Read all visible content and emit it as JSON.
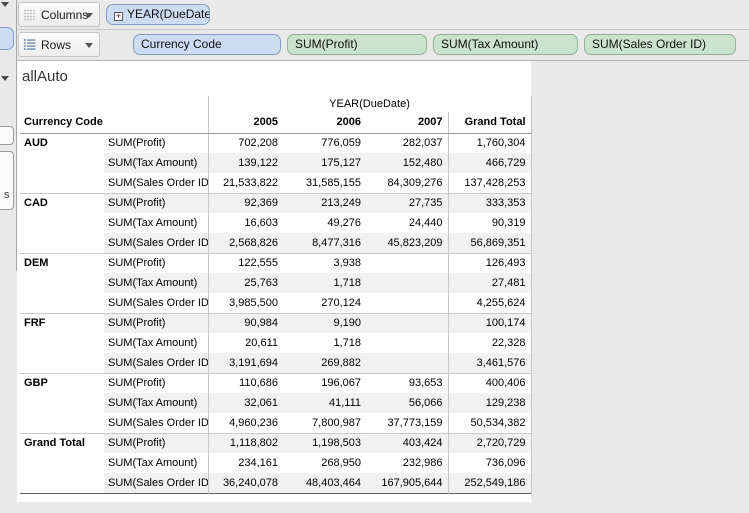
{
  "shelves": {
    "columns": {
      "label": "Columns",
      "pills": [
        {
          "text": "YEAR(DueDate)",
          "expand_glyph": "+",
          "color": "blue"
        }
      ]
    },
    "rows": {
      "label": "Rows",
      "pills": [
        {
          "text": "Currency Code",
          "color": "blue"
        },
        {
          "text": "SUM(Profit)",
          "color": "green"
        },
        {
          "text": "SUM(Tax Amount)",
          "color": "green"
        },
        {
          "text": "SUM(Sales Order ID)",
          "color": "green"
        }
      ]
    }
  },
  "sheet": {
    "title": "allAuto",
    "col_axis_label": "YEAR(DueDate)",
    "row_header_label": "Currency Code",
    "year_columns": [
      "2005",
      "2006",
      "2007"
    ],
    "grand_total_label": "Grand Total"
  },
  "fragments": {
    "cutoff_letter": "s"
  },
  "table": {
    "value_columns": [
      "2005",
      "2006",
      "2007",
      "Grand Total"
    ],
    "sections": [
      {
        "label": "AUD",
        "rows": [
          {
            "measure": "SUM(Profit)",
            "values": [
              "702,208",
              "776,059",
              "282,037",
              "1,760,304"
            ]
          },
          {
            "measure": "SUM(Tax Amount)",
            "values": [
              "139,122",
              "175,127",
              "152,480",
              "466,729"
            ]
          },
          {
            "measure": "SUM(Sales Order ID)",
            "values": [
              "21,533,822",
              "31,585,155",
              "84,309,276",
              "137,428,253"
            ]
          }
        ]
      },
      {
        "label": "CAD",
        "rows": [
          {
            "measure": "SUM(Profit)",
            "values": [
              "92,369",
              "213,249",
              "27,735",
              "333,353"
            ]
          },
          {
            "measure": "SUM(Tax Amount)",
            "values": [
              "16,603",
              "49,276",
              "24,440",
              "90,319"
            ]
          },
          {
            "measure": "SUM(Sales Order ID)",
            "values": [
              "2,568,826",
              "8,477,316",
              "45,823,209",
              "56,869,351"
            ]
          }
        ]
      },
      {
        "label": "DEM",
        "rows": [
          {
            "measure": "SUM(Profit)",
            "values": [
              "122,555",
              "3,938",
              "",
              "126,493"
            ]
          },
          {
            "measure": "SUM(Tax Amount)",
            "values": [
              "25,763",
              "1,718",
              "",
              "27,481"
            ]
          },
          {
            "measure": "SUM(Sales Order ID)",
            "values": [
              "3,985,500",
              "270,124",
              "",
              "4,255,624"
            ]
          }
        ]
      },
      {
        "label": "FRF",
        "rows": [
          {
            "measure": "SUM(Profit)",
            "values": [
              "90,984",
              "9,190",
              "",
              "100,174"
            ]
          },
          {
            "measure": "SUM(Tax Amount)",
            "values": [
              "20,611",
              "1,718",
              "",
              "22,328"
            ]
          },
          {
            "measure": "SUM(Sales Order ID)",
            "values": [
              "3,191,694",
              "269,882",
              "",
              "3,461,576"
            ]
          }
        ]
      },
      {
        "label": "GBP",
        "rows": [
          {
            "measure": "SUM(Profit)",
            "values": [
              "110,686",
              "196,067",
              "93,653",
              "400,406"
            ]
          },
          {
            "measure": "SUM(Tax Amount)",
            "values": [
              "32,061",
              "41,111",
              "56,066",
              "129,238"
            ]
          },
          {
            "measure": "SUM(Sales Order ID)",
            "values": [
              "4,960,236",
              "7,800,987",
              "37,773,159",
              "50,534,382"
            ]
          }
        ]
      },
      {
        "label": "Grand Total",
        "rows": [
          {
            "measure": "SUM(Profit)",
            "values": [
              "1,118,802",
              "1,198,503",
              "403,424",
              "2,720,729"
            ]
          },
          {
            "measure": "SUM(Tax Amount)",
            "values": [
              "234,161",
              "268,950",
              "232,986",
              "736,096"
            ]
          },
          {
            "measure": "SUM(Sales Order ID)",
            "values": [
              "36,240,078",
              "48,403,464",
              "167,905,644",
              "252,549,186"
            ]
          }
        ]
      }
    ]
  },
  "colors": {
    "dimension_pill": "#cddcf3",
    "dimension_pill_border": "#849ec0",
    "measure_pill": "#cbe3cd",
    "measure_pill_border": "#93b295",
    "row_band": "#f1f1f1",
    "sheet_bg": "#ffffff",
    "canvas_bg": "#e9e9e9"
  }
}
